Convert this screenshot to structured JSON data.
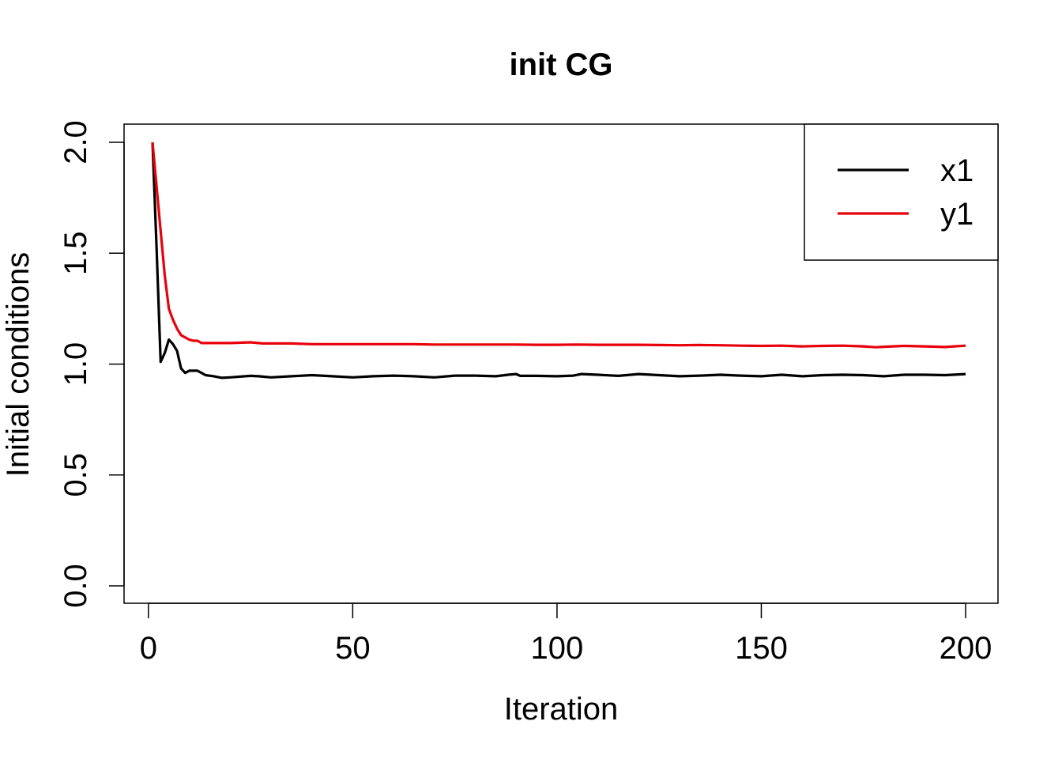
{
  "chart_data": {
    "type": "line",
    "title": "init CG",
    "xlabel": "Iteration",
    "ylabel": "Initial conditions",
    "xlim": [
      1,
      200
    ],
    "ylim": [
      0,
      2
    ],
    "xticks": [
      0,
      50,
      100,
      150,
      200
    ],
    "yticks": [
      0.0,
      0.5,
      1.0,
      1.5,
      2.0
    ],
    "xtick_labels": [
      "0",
      "50",
      "100",
      "150",
      "200"
    ],
    "ytick_labels": [
      "0.0",
      "0.5",
      "1.0",
      "1.5",
      "2.0"
    ],
    "grid": false,
    "legend_position": "top-right",
    "series": [
      {
        "name": "x1",
        "color": "#000000",
        "points": [
          [
            1,
            2.0
          ],
          [
            2,
            1.52
          ],
          [
            3,
            1.01
          ],
          [
            4,
            1.05
          ],
          [
            5,
            1.11
          ],
          [
            6,
            1.09
          ],
          [
            7,
            1.06
          ],
          [
            8,
            0.98
          ],
          [
            9,
            0.96
          ],
          [
            10,
            0.97
          ],
          [
            11,
            0.97
          ],
          [
            12,
            0.97
          ],
          [
            13,
            0.96
          ],
          [
            14,
            0.95
          ],
          [
            16,
            0.945
          ],
          [
            18,
            0.938
          ],
          [
            20,
            0.94
          ],
          [
            25,
            0.947
          ],
          [
            27,
            0.945
          ],
          [
            30,
            0.94
          ],
          [
            35,
            0.945
          ],
          [
            40,
            0.95
          ],
          [
            45,
            0.945
          ],
          [
            50,
            0.94
          ],
          [
            55,
            0.945
          ],
          [
            60,
            0.948
          ],
          [
            65,
            0.945
          ],
          [
            70,
            0.94
          ],
          [
            75,
            0.948
          ],
          [
            80,
            0.948
          ],
          [
            85,
            0.945
          ],
          [
            88,
            0.952
          ],
          [
            90,
            0.955
          ],
          [
            91,
            0.947
          ],
          [
            95,
            0.947
          ],
          [
            100,
            0.945
          ],
          [
            104,
            0.948
          ],
          [
            106,
            0.955
          ],
          [
            110,
            0.952
          ],
          [
            115,
            0.947
          ],
          [
            120,
            0.955
          ],
          [
            125,
            0.95
          ],
          [
            130,
            0.945
          ],
          [
            135,
            0.948
          ],
          [
            140,
            0.952
          ],
          [
            145,
            0.948
          ],
          [
            150,
            0.945
          ],
          [
            155,
            0.952
          ],
          [
            160,
            0.945
          ],
          [
            165,
            0.95
          ],
          [
            170,
            0.952
          ],
          [
            175,
            0.95
          ],
          [
            180,
            0.945
          ],
          [
            185,
            0.952
          ],
          [
            190,
            0.952
          ],
          [
            195,
            0.95
          ],
          [
            200,
            0.955
          ]
        ]
      },
      {
        "name": "y1",
        "color": "#e8000b",
        "points": [
          [
            1,
            2.0
          ],
          [
            2,
            1.8
          ],
          [
            3,
            1.6
          ],
          [
            4,
            1.4
          ],
          [
            5,
            1.25
          ],
          [
            6,
            1.2
          ],
          [
            7,
            1.16
          ],
          [
            8,
            1.13
          ],
          [
            9,
            1.12
          ],
          [
            10,
            1.11
          ],
          [
            11,
            1.105
          ],
          [
            12,
            1.105
          ],
          [
            13,
            1.095
          ],
          [
            15,
            1.095
          ],
          [
            20,
            1.095
          ],
          [
            25,
            1.098
          ],
          [
            28,
            1.093
          ],
          [
            30,
            1.093
          ],
          [
            35,
            1.093
          ],
          [
            40,
            1.09
          ],
          [
            45,
            1.09
          ],
          [
            50,
            1.09
          ],
          [
            55,
            1.09
          ],
          [
            60,
            1.09
          ],
          [
            65,
            1.09
          ],
          [
            70,
            1.088
          ],
          [
            75,
            1.088
          ],
          [
            80,
            1.088
          ],
          [
            85,
            1.088
          ],
          [
            90,
            1.088
          ],
          [
            95,
            1.087
          ],
          [
            100,
            1.087
          ],
          [
            105,
            1.088
          ],
          [
            110,
            1.087
          ],
          [
            115,
            1.087
          ],
          [
            120,
            1.087
          ],
          [
            125,
            1.086
          ],
          [
            130,
            1.085
          ],
          [
            135,
            1.086
          ],
          [
            140,
            1.085
          ],
          [
            145,
            1.083
          ],
          [
            150,
            1.082
          ],
          [
            155,
            1.083
          ],
          [
            160,
            1.08
          ],
          [
            165,
            1.082
          ],
          [
            170,
            1.083
          ],
          [
            175,
            1.08
          ],
          [
            178,
            1.076
          ],
          [
            180,
            1.078
          ],
          [
            185,
            1.082
          ],
          [
            190,
            1.08
          ],
          [
            195,
            1.077
          ],
          [
            200,
            1.083
          ]
        ]
      }
    ]
  }
}
